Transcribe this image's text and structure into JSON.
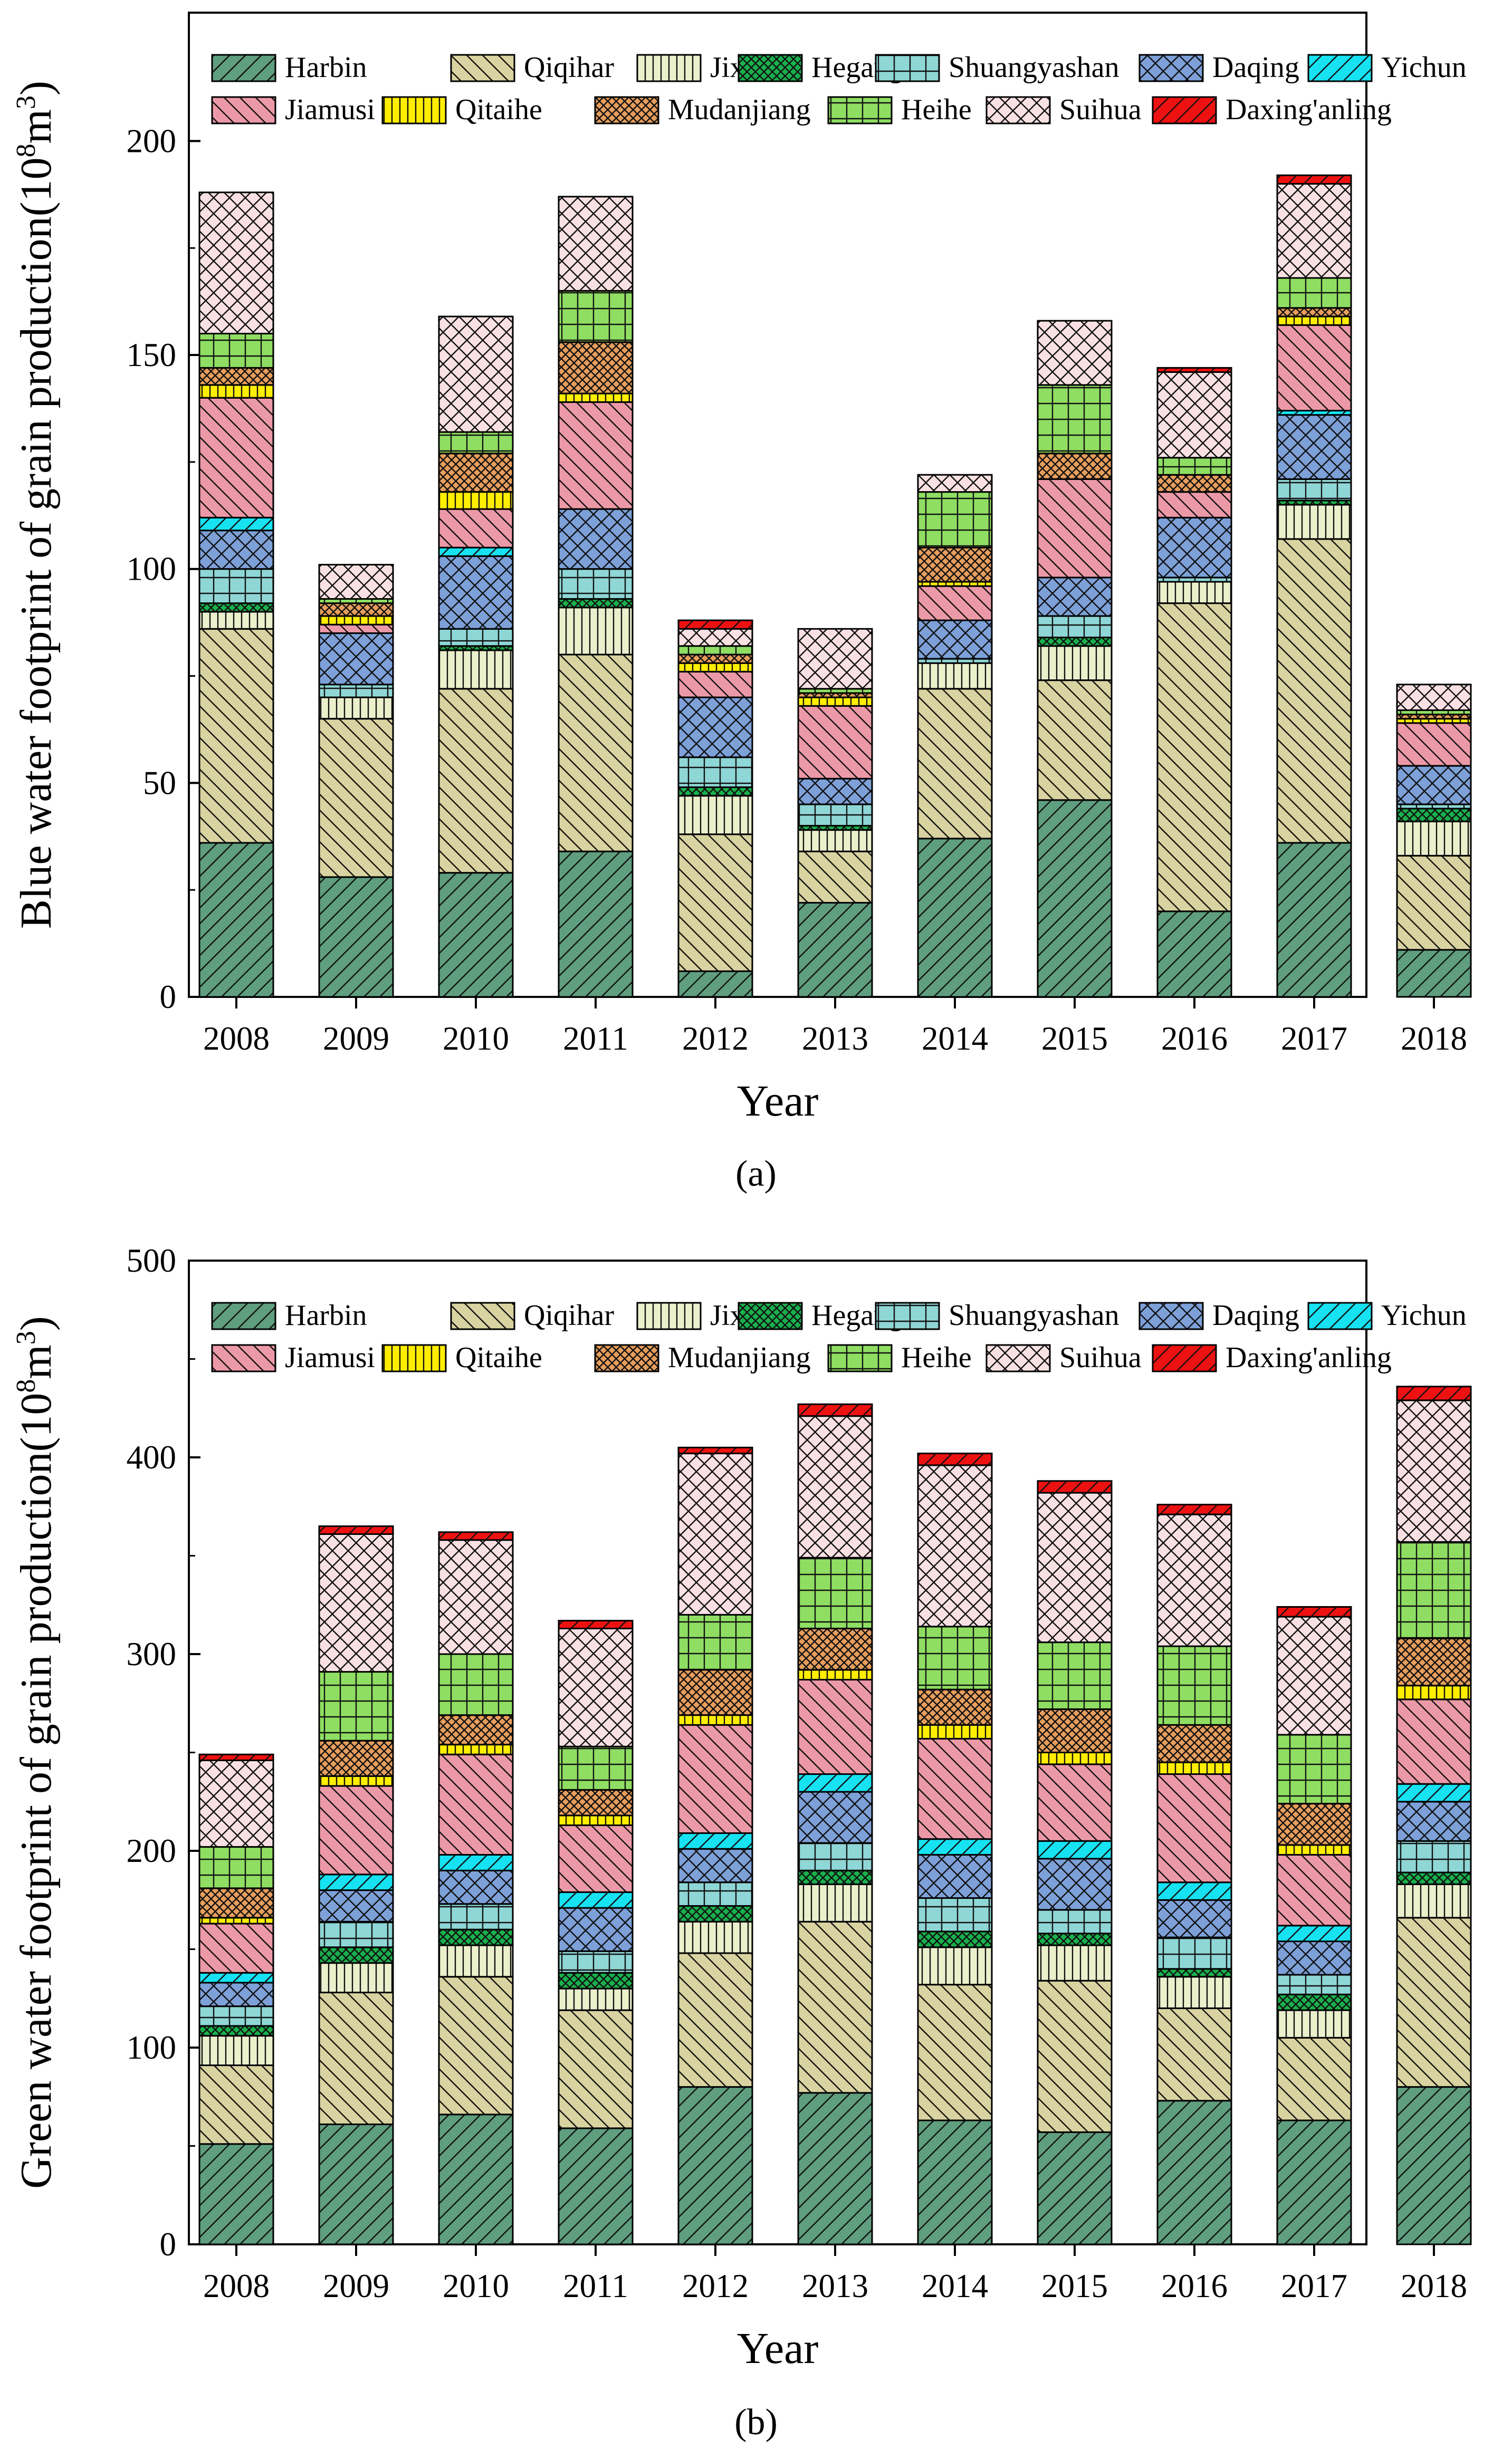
{
  "figure": {
    "years": [
      "2008",
      "2009",
      "2010",
      "2011",
      "2012",
      "2013",
      "2014",
      "2015",
      "2016",
      "2017",
      "2018"
    ],
    "cities": [
      {
        "name": "Harbin",
        "color": "#5f9e7e",
        "pattern": "hatch-fwd"
      },
      {
        "name": "Qiqihar",
        "color": "#d8d3a0",
        "pattern": "hatch-back"
      },
      {
        "name": "Jixi",
        "color": "#eaf0cc",
        "pattern": "vlines"
      },
      {
        "name": "Hegang",
        "color": "#19b04c",
        "pattern": "crosshatch-dense"
      },
      {
        "name": "Shuangyashan",
        "color": "#8fd6d6",
        "pattern": "grid"
      },
      {
        "name": "Daqing",
        "color": "#7da0d8",
        "pattern": "crosshatch"
      },
      {
        "name": "Yichun",
        "color": "#16e2f2",
        "pattern": "hatch-fwd"
      },
      {
        "name": "Jiamusi",
        "color": "#ec99a7",
        "pattern": "hatch-back"
      },
      {
        "name": "Qitaihe",
        "color": "#ffee00",
        "pattern": "vlines"
      },
      {
        "name": "Mudanjiang",
        "color": "#e79e5c",
        "pattern": "crosshatch-dense"
      },
      {
        "name": "Heihe",
        "color": "#8fde63",
        "pattern": "grid"
      },
      {
        "name": "Suihua",
        "color": "#f9e1e3",
        "pattern": "crosshatch"
      },
      {
        "name": "Daxing'anling",
        "color": "#ee1111",
        "pattern": "hatch-fwd"
      }
    ]
  },
  "chart_data": [
    {
      "type": "bar",
      "stacked": true,
      "panel_label": "(a)",
      "title": "",
      "xlabel": "Year",
      "ylabel": "Blue water footprint of grain production(10^8 m^3)",
      "ylabel_main": "Blue water footprint of grain production(10",
      "ylabel_exp": "8",
      "ylabel_unit": "m",
      "ylabel_unit_exp": "3",
      "ylabel_close": ")",
      "ylim": [
        0,
        230
      ],
      "yticks": [
        0,
        50,
        100,
        150,
        200
      ],
      "categories": [
        "2008",
        "2009",
        "2010",
        "2011",
        "2012",
        "2013",
        "2014",
        "2015",
        "2016",
        "2017",
        "2018"
      ],
      "series": [
        {
          "name": "Harbin",
          "values": [
            36,
            28,
            29,
            34,
            6,
            22,
            37,
            46,
            20,
            36,
            11
          ]
        },
        {
          "name": "Qiqihar",
          "values": [
            50,
            37,
            43,
            46,
            32,
            12,
            35,
            28,
            72,
            71,
            22
          ]
        },
        {
          "name": "Jixi",
          "values": [
            4,
            5,
            9,
            11,
            9,
            5,
            6,
            8,
            5,
            8,
            8
          ]
        },
        {
          "name": "Hegang",
          "values": [
            2,
            0,
            1,
            2,
            2,
            1,
            0,
            2,
            0,
            1,
            3
          ]
        },
        {
          "name": "Shuangyashan",
          "values": [
            8,
            3,
            4,
            7,
            7,
            5,
            1,
            5,
            1,
            5,
            1
          ]
        },
        {
          "name": "Daqing",
          "values": [
            9,
            12,
            17,
            14,
            14,
            6,
            9,
            9,
            14,
            15,
            9
          ]
        },
        {
          "name": "Yichun",
          "values": [
            3,
            0,
            2,
            0,
            0,
            0,
            0,
            0,
            0,
            1,
            0
          ]
        },
        {
          "name": "Jiamusi",
          "values": [
            28,
            2,
            9,
            25,
            6,
            17,
            8,
            23,
            6,
            20,
            10
          ]
        },
        {
          "name": "Qitaihe",
          "values": [
            3,
            2,
            4,
            2,
            2,
            2,
            1,
            0,
            0,
            2,
            1
          ]
        },
        {
          "name": "Mudanjiang",
          "values": [
            4,
            3,
            9,
            12,
            2,
            1,
            8,
            6,
            4,
            2,
            1
          ]
        },
        {
          "name": "Heihe",
          "values": [
            8,
            1,
            5,
            12,
            2,
            1,
            13,
            16,
            4,
            7,
            1
          ]
        },
        {
          "name": "Suihua",
          "values": [
            33,
            8,
            27,
            22,
            4,
            14,
            4,
            15,
            20,
            22,
            6
          ]
        },
        {
          "name": "Daxing'anling",
          "values": [
            0,
            0,
            0,
            0,
            2,
            0,
            0,
            0,
            1,
            2,
            0
          ]
        }
      ]
    },
    {
      "type": "bar",
      "stacked": true,
      "panel_label": "(b)",
      "title": "",
      "xlabel": "Year",
      "ylabel": "Green water footprint of grain production(10^8 m^3)",
      "ylabel_main": "Green water footprint of grain production(10",
      "ylabel_exp": "8",
      "ylabel_unit": "m",
      "ylabel_unit_exp": "3",
      "ylabel_close": ")",
      "ylim": [
        0,
        500
      ],
      "yticks": [
        0,
        100,
        200,
        300,
        400,
        500
      ],
      "categories": [
        "2008",
        "2009",
        "2010",
        "2011",
        "2012",
        "2013",
        "2014",
        "2015",
        "2016",
        "2017",
        "2018"
      ],
      "series": [
        {
          "name": "Harbin",
          "values": [
            51,
            61,
            66,
            59,
            80,
            77,
            63,
            57,
            73,
            63,
            80
          ]
        },
        {
          "name": "Qiqihar",
          "values": [
            40,
            67,
            70,
            60,
            68,
            87,
            69,
            77,
            47,
            42,
            86
          ]
        },
        {
          "name": "Jixi",
          "values": [
            15,
            15,
            16,
            11,
            16,
            19,
            19,
            18,
            16,
            14,
            17
          ]
        },
        {
          "name": "Hegang",
          "values": [
            5,
            8,
            8,
            8,
            8,
            7,
            8,
            6,
            4,
            8,
            6
          ]
        },
        {
          "name": "Shuangyashan",
          "values": [
            10,
            13,
            13,
            11,
            12,
            14,
            17,
            12,
            16,
            10,
            16
          ]
        },
        {
          "name": "Daqing",
          "values": [
            12,
            16,
            17,
            22,
            17,
            26,
            22,
            26,
            19,
            17,
            20
          ]
        },
        {
          "name": "Yichun",
          "values": [
            5,
            8,
            8,
            8,
            8,
            9,
            8,
            9,
            9,
            8,
            9
          ]
        },
        {
          "name": "Jiamusi",
          "values": [
            25,
            45,
            51,
            34,
            55,
            48,
            51,
            39,
            55,
            36,
            43
          ]
        },
        {
          "name": "Qitaihe",
          "values": [
            3,
            5,
            5,
            5,
            5,
            5,
            7,
            6,
            6,
            5,
            7
          ]
        },
        {
          "name": "Mudanjiang",
          "values": [
            15,
            18,
            15,
            13,
            23,
            21,
            18,
            22,
            19,
            21,
            24
          ]
        },
        {
          "name": "Heihe",
          "values": [
            21,
            35,
            31,
            22,
            28,
            36,
            32,
            34,
            40,
            35,
            49
          ]
        },
        {
          "name": "Suihua",
          "values": [
            44,
            70,
            58,
            60,
            82,
            72,
            82,
            76,
            67,
            60,
            72
          ]
        },
        {
          "name": "Daxing'anling",
          "values": [
            3,
            4,
            4,
            4,
            3,
            6,
            6,
            6,
            5,
            5,
            7
          ]
        }
      ]
    }
  ]
}
